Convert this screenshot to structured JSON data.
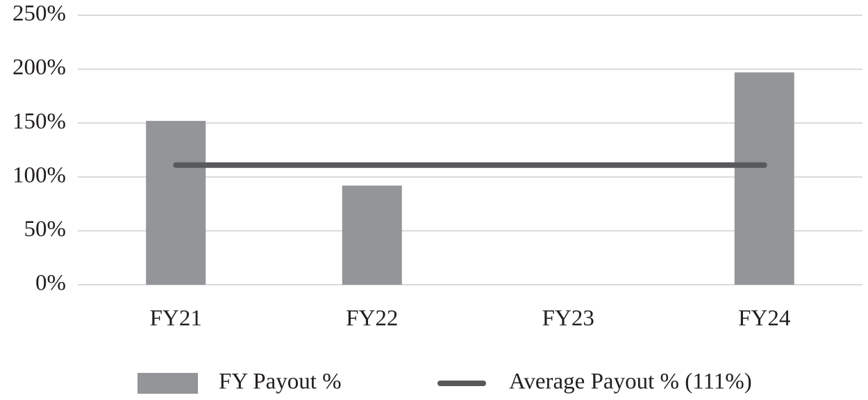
{
  "chart_data": {
    "type": "bar",
    "categories": [
      "FY21",
      "FY22",
      "FY23",
      "FY24"
    ],
    "series": [
      {
        "name": "FY Payout %",
        "type": "bar",
        "color": "#939598",
        "values": [
          152,
          92,
          0,
          197
        ]
      },
      {
        "name": "Average Payout % (111%)",
        "type": "line",
        "color": "#58595b",
        "values": [
          111,
          111,
          111,
          111
        ]
      }
    ],
    "ylim": [
      0,
      250
    ],
    "yticks": [
      {
        "value": 0,
        "label": "0%"
      },
      {
        "value": 50,
        "label": "50%"
      },
      {
        "value": 100,
        "label": "100%"
      },
      {
        "value": 150,
        "label": "150%"
      },
      {
        "value": 200,
        "label": "200%"
      },
      {
        "value": 250,
        "label": "250%"
      }
    ],
    "grid": true,
    "legend": "bottom"
  }
}
